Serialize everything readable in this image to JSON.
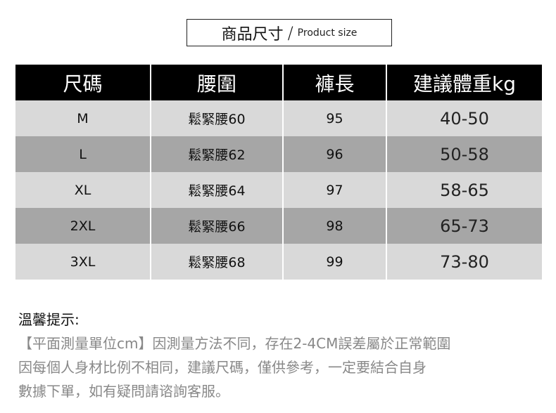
{
  "title": {
    "zh": "商品尺寸",
    "sep": "/",
    "en": "Product size"
  },
  "table": {
    "headers": [
      "尺碼",
      "腰圍",
      "褲長",
      "建議體重kg"
    ],
    "rows": [
      [
        "M",
        "鬆緊腰60",
        "95",
        "40-50"
      ],
      [
        "L",
        "鬆緊腰62",
        "96",
        "50-58"
      ],
      [
        "XL",
        "鬆緊腰64",
        "97",
        "58-65"
      ],
      [
        "2XL",
        "鬆緊腰66",
        "98",
        "65-73"
      ],
      [
        "3XL",
        "鬆緊腰68",
        "99",
        "73-80"
      ]
    ]
  },
  "notes": {
    "heading": "溫馨提示:",
    "lines": [
      "【平面測量單位cm】因測量方法不同，存在2-4CM誤差屬於正常範圍",
      "因每個人身材比例不相同，建議尺碼，僅供參考，一定要結合自身",
      "數據下單，如有疑問請谘詢客服。"
    ]
  },
  "colors": {
    "header_bg": "#000000",
    "row_light": "#d9d9d9",
    "row_dark": "#a6a6a6",
    "note_text": "#888888"
  }
}
